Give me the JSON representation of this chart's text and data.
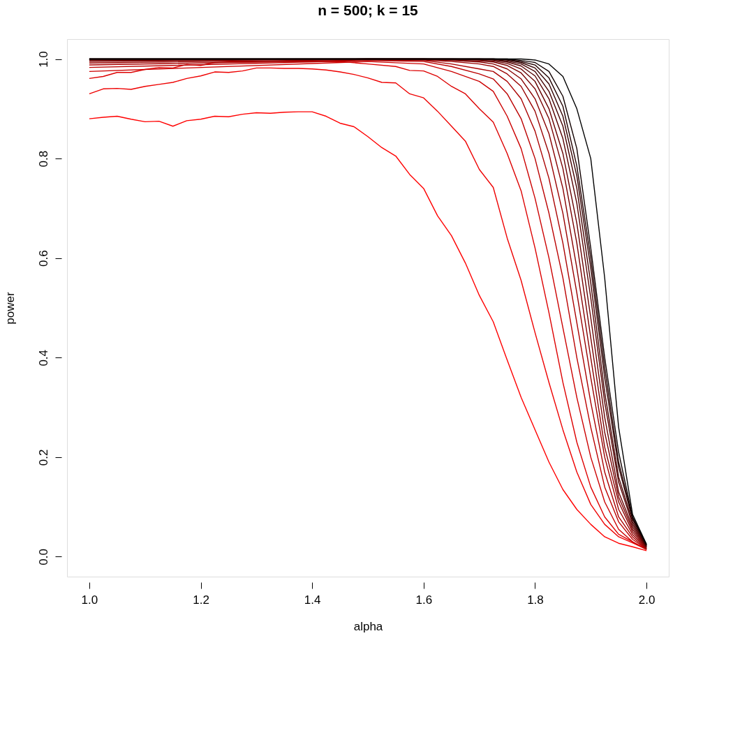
{
  "chart_data": {
    "type": "line",
    "title": "n = 500; k = 15",
    "xlabel": "alpha",
    "ylabel": "power",
    "xlim": [
      0.96,
      2.04
    ],
    "ylim": [
      -0.04,
      1.04
    ],
    "xticks": [
      {
        "value": 1,
        "label": "1.0"
      },
      {
        "value": 1.2,
        "label": "1.2"
      },
      {
        "value": 1.4,
        "label": "1.4"
      },
      {
        "value": 1.6,
        "label": "1.6"
      },
      {
        "value": 1.8,
        "label": "1.8"
      },
      {
        "value": 2,
        "label": "2.0"
      }
    ],
    "yticks": [
      {
        "value": 0,
        "label": "0.0"
      },
      {
        "value": 0.2,
        "label": "0.2"
      },
      {
        "value": 0.4,
        "label": "0.4"
      },
      {
        "value": 0.6,
        "label": "0.6"
      },
      {
        "value": 0.8,
        "label": "0.8"
      },
      {
        "value": 1,
        "label": "1.0"
      }
    ],
    "grid": false,
    "legend": false,
    "line_style": "solid",
    "marker": "none",
    "series": [
      {
        "color": "#ff0000",
        "x": [
          1.0,
          1.025,
          1.05,
          1.075,
          1.1,
          1.125,
          1.15,
          1.175,
          1.2,
          1.225,
          1.25,
          1.275,
          1.3,
          1.325,
          1.35,
          1.375,
          1.4,
          1.425,
          1.45,
          1.475,
          1.5,
          1.525,
          1.55,
          1.575,
          1.6,
          1.625,
          1.65,
          1.675,
          1.7,
          1.725,
          1.75,
          1.775,
          1.8,
          1.825,
          1.85,
          1.875,
          1.9,
          1.925,
          1.95,
          1.975,
          2.0
        ],
        "values": [
          0.88,
          0.883,
          0.885,
          0.879,
          0.874,
          0.875,
          0.865,
          0.876,
          0.879,
          0.885,
          0.884,
          0.889,
          0.892,
          0.891,
          0.893,
          0.894,
          0.894,
          0.885,
          0.871,
          0.864,
          0.844,
          0.822,
          0.805,
          0.768,
          0.74,
          0.685,
          0.645,
          0.59,
          0.525,
          0.472,
          0.395,
          0.32,
          0.255,
          0.19,
          0.135,
          0.095,
          0.065,
          0.04,
          0.027,
          0.02,
          0.012
        ]
      },
      {
        "color": "#ee0000",
        "x": [
          1.0,
          1.025,
          1.05,
          1.075,
          1.1,
          1.125,
          1.15,
          1.175,
          1.2,
          1.225,
          1.25,
          1.275,
          1.3,
          1.325,
          1.35,
          1.375,
          1.4,
          1.425,
          1.45,
          1.475,
          1.5,
          1.525,
          1.55,
          1.575,
          1.6,
          1.625,
          1.65,
          1.675,
          1.7,
          1.725,
          1.75,
          1.775,
          1.8,
          1.825,
          1.85,
          1.875,
          1.9,
          1.925,
          1.95,
          1.975,
          2.0
        ],
        "values": [
          0.93,
          0.94,
          0.941,
          0.939,
          0.945,
          0.949,
          0.953,
          0.961,
          0.966,
          0.974,
          0.973,
          0.976,
          0.982,
          0.982,
          0.981,
          0.981,
          0.98,
          0.978,
          0.974,
          0.969,
          0.962,
          0.953,
          0.952,
          0.93,
          0.922,
          0.895,
          0.865,
          0.835,
          0.778,
          0.742,
          0.64,
          0.555,
          0.45,
          0.35,
          0.255,
          0.17,
          0.105,
          0.065,
          0.04,
          0.028,
          0.015
        ]
      },
      {
        "color": "#dd0000",
        "x": [
          1.0,
          1.025,
          1.05,
          1.075,
          1.1,
          1.125,
          1.15,
          1.175,
          1.2,
          1.225,
          1.25,
          1.45,
          1.5,
          1.55,
          1.575,
          1.6,
          1.625,
          1.65,
          1.675,
          1.7,
          1.725,
          1.75,
          1.775,
          1.8,
          1.825,
          1.85,
          1.875,
          1.9,
          1.925,
          1.95,
          1.975,
          2.0
        ],
        "values": [
          0.961,
          0.965,
          0.973,
          0.973,
          0.979,
          0.983,
          0.982,
          0.989,
          0.987,
          0.993,
          0.994,
          0.995,
          0.99,
          0.985,
          0.977,
          0.976,
          0.965,
          0.945,
          0.93,
          0.9,
          0.873,
          0.81,
          0.735,
          0.62,
          0.49,
          0.35,
          0.23,
          0.14,
          0.08,
          0.045,
          0.03,
          0.015
        ]
      },
      {
        "color": "#cc0000",
        "x": [
          1.0,
          1.5,
          1.6,
          1.65,
          1.7,
          1.725,
          1.75,
          1.775,
          1.8,
          1.825,
          1.85,
          1.875,
          1.9,
          1.925,
          1.95,
          1.975,
          2.0
        ],
        "values": [
          0.975,
          0.995,
          0.99,
          0.975,
          0.955,
          0.935,
          0.885,
          0.82,
          0.72,
          0.6,
          0.46,
          0.32,
          0.2,
          0.11,
          0.055,
          0.03,
          0.014
        ]
      },
      {
        "color": "#bb0000",
        "x": [
          1.0,
          1.5,
          1.6,
          1.65,
          1.7,
          1.725,
          1.75,
          1.775,
          1.8,
          1.825,
          1.85,
          1.875,
          1.9,
          1.925,
          1.95,
          1.975,
          2.0
        ],
        "values": [
          0.983,
          0.997,
          0.995,
          0.985,
          0.97,
          0.96,
          0.93,
          0.88,
          0.8,
          0.69,
          0.56,
          0.4,
          0.26,
          0.14,
          0.07,
          0.035,
          0.015
        ]
      },
      {
        "color": "#aa0000",
        "x": [
          1.0,
          1.5,
          1.6,
          1.65,
          1.7,
          1.725,
          1.75,
          1.775,
          1.8,
          1.825,
          1.85,
          1.875,
          1.9,
          1.925,
          1.95,
          1.975,
          2.0
        ],
        "values": [
          0.988,
          0.998,
          0.997,
          0.99,
          0.98,
          0.975,
          0.955,
          0.92,
          0.855,
          0.76,
          0.63,
          0.47,
          0.31,
          0.17,
          0.08,
          0.04,
          0.015
        ]
      },
      {
        "color": "#990000",
        "x": [
          1.0,
          1.5,
          1.6,
          1.65,
          1.7,
          1.725,
          1.75,
          1.775,
          1.8,
          1.825,
          1.85,
          1.875,
          1.9,
          1.925,
          1.95,
          1.975,
          2.0
        ],
        "values": [
          0.992,
          0.999,
          0.998,
          0.995,
          0.99,
          0.985,
          0.97,
          0.945,
          0.895,
          0.81,
          0.69,
          0.53,
          0.36,
          0.2,
          0.095,
          0.045,
          0.016
        ]
      },
      {
        "color": "#880000",
        "x": [
          1.0,
          1.5,
          1.6,
          1.65,
          1.7,
          1.725,
          1.75,
          1.775,
          1.8,
          1.825,
          1.85,
          1.875,
          1.9,
          1.925,
          1.95,
          1.975,
          2.0
        ],
        "values": [
          0.995,
          1.0,
          0.999,
          0.997,
          0.994,
          0.99,
          0.98,
          0.96,
          0.92,
          0.85,
          0.74,
          0.58,
          0.4,
          0.22,
          0.11,
          0.05,
          0.017
        ]
      },
      {
        "color": "#770000",
        "x": [
          1.0,
          1.5,
          1.6,
          1.65,
          1.7,
          1.725,
          1.75,
          1.775,
          1.8,
          1.825,
          1.85,
          1.875,
          1.9,
          1.925,
          1.95,
          1.975,
          2.0
        ],
        "values": [
          0.997,
          1.0,
          1.0,
          0.998,
          0.996,
          0.994,
          0.987,
          0.972,
          0.94,
          0.88,
          0.78,
          0.63,
          0.44,
          0.25,
          0.12,
          0.055,
          0.018
        ]
      },
      {
        "color": "#660000",
        "x": [
          1.0,
          1.5,
          1.6,
          1.65,
          1.7,
          1.725,
          1.75,
          1.775,
          1.8,
          1.825,
          1.85,
          1.875,
          1.9,
          1.925,
          1.95,
          1.975,
          2.0
        ],
        "values": [
          0.998,
          1.0,
          1.0,
          0.999,
          0.998,
          0.996,
          0.991,
          0.98,
          0.955,
          0.9,
          0.81,
          0.67,
          0.48,
          0.28,
          0.13,
          0.06,
          0.019
        ]
      },
      {
        "color": "#550000",
        "x": [
          1.0,
          1.5,
          1.6,
          1.65,
          1.7,
          1.725,
          1.75,
          1.775,
          1.8,
          1.825,
          1.85,
          1.875,
          1.9,
          1.925,
          1.95,
          1.975,
          2.0
        ],
        "values": [
          0.999,
          1.0,
          1.0,
          1.0,
          0.999,
          0.998,
          0.994,
          0.986,
          0.966,
          0.92,
          0.84,
          0.71,
          0.52,
          0.31,
          0.15,
          0.065,
          0.02
        ]
      },
      {
        "color": "#440000",
        "x": [
          1.0,
          1.5,
          1.6,
          1.65,
          1.7,
          1.725,
          1.75,
          1.775,
          1.8,
          1.825,
          1.85,
          1.875,
          1.9,
          1.925,
          1.95,
          1.975,
          2.0
        ],
        "values": [
          1.0,
          1.0,
          1.0,
          1.0,
          1.0,
          0.999,
          0.996,
          0.99,
          0.975,
          0.935,
          0.865,
          0.74,
          0.55,
          0.33,
          0.16,
          0.07,
          0.021
        ]
      },
      {
        "color": "#330000",
        "x": [
          1.0,
          1.5,
          1.6,
          1.65,
          1.7,
          1.725,
          1.75,
          1.775,
          1.8,
          1.825,
          1.85,
          1.875,
          1.9,
          1.925,
          1.95,
          1.975,
          2.0
        ],
        "values": [
          1.0,
          1.0,
          1.0,
          1.0,
          1.0,
          1.0,
          0.998,
          0.993,
          0.982,
          0.95,
          0.885,
          0.765,
          0.58,
          0.36,
          0.18,
          0.075,
          0.022
        ]
      },
      {
        "color": "#220000",
        "x": [
          1.0,
          1.5,
          1.6,
          1.65,
          1.7,
          1.725,
          1.75,
          1.775,
          1.8,
          1.825,
          1.85,
          1.875,
          1.9,
          1.925,
          1.95,
          1.975,
          2.0
        ],
        "values": [
          1.0,
          1.0,
          1.0,
          1.0,
          1.0,
          1.0,
          0.999,
          0.995,
          0.988,
          0.962,
          0.905,
          0.785,
          0.6,
          0.38,
          0.19,
          0.078,
          0.023
        ]
      },
      {
        "color": "#110000",
        "x": [
          1.0,
          1.5,
          1.6,
          1.65,
          1.7,
          1.725,
          1.75,
          1.775,
          1.8,
          1.825,
          1.85,
          1.875,
          1.9,
          1.925,
          1.95,
          1.975,
          2.0
        ],
        "values": [
          1.0,
          1.0,
          1.0,
          1.0,
          1.0,
          1.0,
          1.0,
          0.997,
          0.993,
          0.975,
          0.925,
          0.82,
          0.62,
          0.4,
          0.21,
          0.08,
          0.024
        ]
      },
      {
        "color": "#000000",
        "x": [
          1.0,
          1.5,
          1.6,
          1.65,
          1.7,
          1.725,
          1.75,
          1.775,
          1.8,
          1.825,
          1.85,
          1.875,
          1.9,
          1.925,
          1.95,
          1.975,
          2.0
        ],
        "values": [
          1.0,
          1.0,
          1.0,
          1.0,
          1.0,
          1.0,
          1.0,
          1.0,
          0.998,
          0.99,
          0.965,
          0.9,
          0.8,
          0.56,
          0.26,
          0.085,
          0.025
        ]
      }
    ]
  }
}
